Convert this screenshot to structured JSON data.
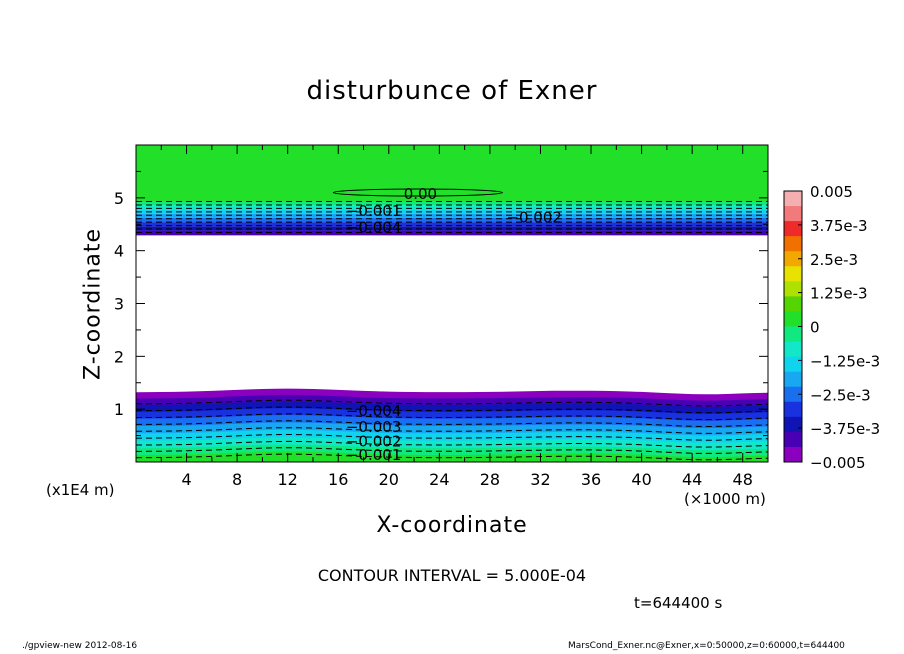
{
  "chart_data": {
    "type": "heatmap",
    "title": "disturbunce of Exner",
    "xlabel": "X-coordinate",
    "ylabel": "Z-coordinate",
    "x_unit": "(×1000 m)",
    "y_unit": "(x1E4 m)",
    "xlim": [
      0,
      50
    ],
    "ylim": [
      0,
      6
    ],
    "x_ticks": [
      4,
      8,
      12,
      16,
      20,
      24,
      28,
      32,
      36,
      40,
      44,
      48
    ],
    "y_ticks": [
      1,
      2,
      3,
      4,
      5
    ],
    "contour_interval": "CONTOUR INTERVAL = 5.000E-04",
    "time_label": "t=644400 s",
    "colorbar": {
      "ticks": [
        {
          "value": 0.005,
          "label": "0.005"
        },
        {
          "value": 0.00375,
          "label": "3.75e-3"
        },
        {
          "value": 0.0025,
          "label": "2.5e-3"
        },
        {
          "value": 0.00125,
          "label": "1.25e-3"
        },
        {
          "value": 0,
          "label": "0"
        },
        {
          "value": -0.00125,
          "label": "−1.25e-3"
        },
        {
          "value": -0.0025,
          "label": "−2.5e-3"
        },
        {
          "value": -0.00375,
          "label": "−3.75e-3"
        },
        {
          "value": -0.005,
          "label": "−0.005"
        }
      ],
      "colors": [
        "#f4b0b0",
        "#f27a7a",
        "#ee2a2a",
        "#f07000",
        "#f3a800",
        "#e8e200",
        "#aee000",
        "#54d400",
        "#22e02a",
        "#10e880",
        "#12e8c8",
        "#10d4ee",
        "#18a8f2",
        "#1a6ef0",
        "#1832e0",
        "#1014b4",
        "#4800b4",
        "#8a00be"
      ]
    },
    "contour_labels": [
      {
        "text": "0.00",
        "x": 22.5,
        "z": 5.07
      },
      {
        "text": "−0.001",
        "x": 18.8,
        "z": 4.75
      },
      {
        "text": "−0.002",
        "x": 31.5,
        "z": 4.63
      },
      {
        "text": "−0.004",
        "x": 18.8,
        "z": 4.44
      },
      {
        "text": "−0.004",
        "x": 18.8,
        "z": 0.97
      },
      {
        "text": "−0.003",
        "x": 18.8,
        "z": 0.66
      },
      {
        "text": "−0.002",
        "x": 18.8,
        "z": 0.39
      },
      {
        "text": "−0.001",
        "x": 18.8,
        "z": 0.13
      }
    ]
  },
  "footer": {
    "left": "./gpview-new  2012-08-16",
    "right": "MarsCond_Exner.nc@Exner,x=0:50000,z=0:60000,t=644400"
  }
}
